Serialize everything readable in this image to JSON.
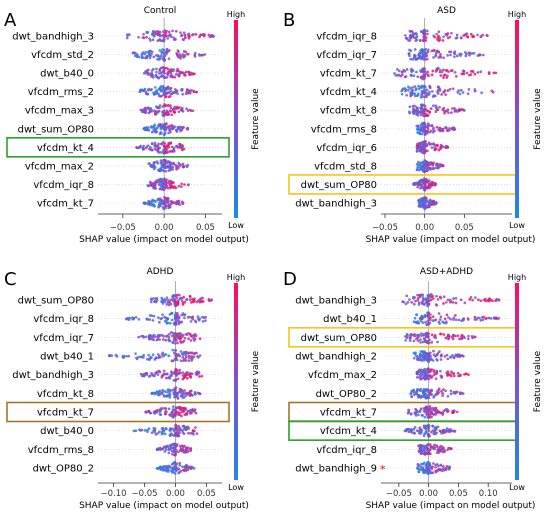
{
  "colors": {
    "low": "#1e88e5",
    "high": "#ff0d57",
    "box_green": "#2ca02c",
    "box_yellow": "#f5c518",
    "box_brown": "#a57628",
    "star": "#ff0000"
  },
  "colorbar": {
    "title": "Feature value",
    "high": "High",
    "low": "Low"
  },
  "chart_data": [
    {
      "type": "scatter",
      "panel": "A",
      "title": "Control",
      "xlabel": "SHAP value (impact on model output)",
      "xlim": [
        -0.08,
        0.07
      ],
      "xticks": [
        -0.05,
        0.0,
        0.05
      ],
      "xtick_labels": [
        "−0.05",
        "0.00",
        "0.05"
      ],
      "features": [
        "dwt_bandhigh_3",
        "vfcdm_std_2",
        "dwt_b40_0",
        "vfcdm_rms_2",
        "vfcdm_max_3",
        "dwt_sum_OP80",
        "vfcdm_kt_4",
        "vfcdm_max_2",
        "vfcdm_iqr_8",
        "vfcdm_kt_7"
      ],
      "spread": [
        [
          -0.045,
          0.06
        ],
        [
          -0.04,
          0.05
        ],
        [
          -0.025,
          0.04
        ],
        [
          -0.03,
          0.04
        ],
        [
          -0.03,
          0.035
        ],
        [
          -0.025,
          0.03
        ],
        [
          -0.035,
          0.025
        ],
        [
          -0.02,
          0.03
        ],
        [
          -0.02,
          0.03
        ],
        [
          -0.025,
          0.025
        ]
      ],
      "highlight": [
        {
          "feature": "vfcdm_kt_4",
          "color": "green"
        }
      ],
      "star": []
    },
    {
      "type": "scatter",
      "panel": "B",
      "title": "ASD",
      "xlabel": "SHAP value (impact on model output)",
      "xlim": [
        -0.055,
        0.11
      ],
      "xticks": [
        -0.05,
        0.0,
        0.05
      ],
      "xtick_labels": [
        "−0.05",
        "0.00",
        "0.05"
      ],
      "features": [
        "vfcdm_iqr_8",
        "vfcdm_iqr_7",
        "vfcdm_kt_7",
        "vfcdm_kt_4",
        "vfcdm_kt_8",
        "vfcdm_rms_8",
        "vfcdm_iqr_6",
        "vfcdm_std_8",
        "dwt_sum_OP80",
        "dwt_bandhigh_3"
      ],
      "spread": [
        [
          -0.025,
          0.08
        ],
        [
          -0.02,
          0.075
        ],
        [
          -0.04,
          0.09
        ],
        [
          -0.03,
          0.09
        ],
        [
          -0.02,
          0.05
        ],
        [
          -0.01,
          0.04
        ],
        [
          -0.01,
          0.03
        ],
        [
          -0.01,
          0.025
        ],
        [
          -0.015,
          0.015
        ],
        [
          -0.008,
          0.015
        ]
      ],
      "highlight": [
        {
          "feature": "dwt_sum_OP80",
          "color": "yellow"
        }
      ],
      "star": []
    },
    {
      "type": "scatter",
      "panel": "C",
      "title": "ADHD",
      "xlabel": "SHAP value (impact on model output)",
      "xlim": [
        -0.125,
        0.075
      ],
      "xticks": [
        -0.1,
        -0.05,
        0.0,
        0.05
      ],
      "xtick_labels": [
        "−0.10",
        "−0.05",
        "0.00",
        "0.05"
      ],
      "features": [
        "dwt_sum_OP80",
        "vfcdm_iqr_8",
        "vfcdm_iqr_7",
        "dwt_b40_1",
        "dwt_bandhigh_3",
        "vfcdm_kt_8",
        "vfcdm_kt_7",
        "dwt_b40_0",
        "vfcdm_rms_8",
        "dwt_OP80_2"
      ],
      "spread": [
        [
          -0.04,
          0.06
        ],
        [
          -0.08,
          0.05
        ],
        [
          -0.06,
          0.04
        ],
        [
          -0.11,
          0.04
        ],
        [
          -0.06,
          0.05
        ],
        [
          -0.04,
          0.04
        ],
        [
          -0.05,
          0.035
        ],
        [
          -0.07,
          0.035
        ],
        [
          -0.03,
          0.025
        ],
        [
          -0.03,
          0.03
        ]
      ],
      "highlight": [
        {
          "feature": "vfcdm_kt_7",
          "color": "brown"
        }
      ],
      "star": []
    },
    {
      "type": "scatter",
      "panel": "D",
      "title": "ASD+ADHD",
      "xlabel": "SHAP value (impact on model output)",
      "xlim": [
        -0.08,
        0.14
      ],
      "xticks": [
        -0.05,
        0.0,
        0.05,
        0.1
      ],
      "xtick_labels": [
        "−0.05",
        "0.00",
        "0.05",
        "0.10"
      ],
      "features": [
        "dwt_bandhigh_3",
        "dwt_b40_1",
        "dwt_sum_OP80",
        "dwt_bandhigh_2",
        "vfcdm_max_2",
        "dwt_OP80_2",
        "vfcdm_kt_7",
        "vfcdm_kt_4",
        "vfcdm_iqr_8",
        "dwt_bandhigh_9"
      ],
      "spread": [
        [
          -0.045,
          0.12
        ],
        [
          -0.025,
          0.12
        ],
        [
          -0.04,
          0.08
        ],
        [
          -0.025,
          0.06
        ],
        [
          -0.02,
          0.07
        ],
        [
          -0.03,
          0.06
        ],
        [
          -0.035,
          0.05
        ],
        [
          -0.04,
          0.045
        ],
        [
          -0.02,
          0.04
        ],
        [
          -0.02,
          0.04
        ]
      ],
      "highlight": [
        {
          "feature": "dwt_sum_OP80",
          "color": "yellow"
        },
        {
          "feature": "vfcdm_kt_7",
          "color": "brown"
        },
        {
          "feature": "vfcdm_kt_4",
          "color": "green"
        }
      ],
      "star": [
        "dwt_bandhigh_9"
      ]
    }
  ]
}
